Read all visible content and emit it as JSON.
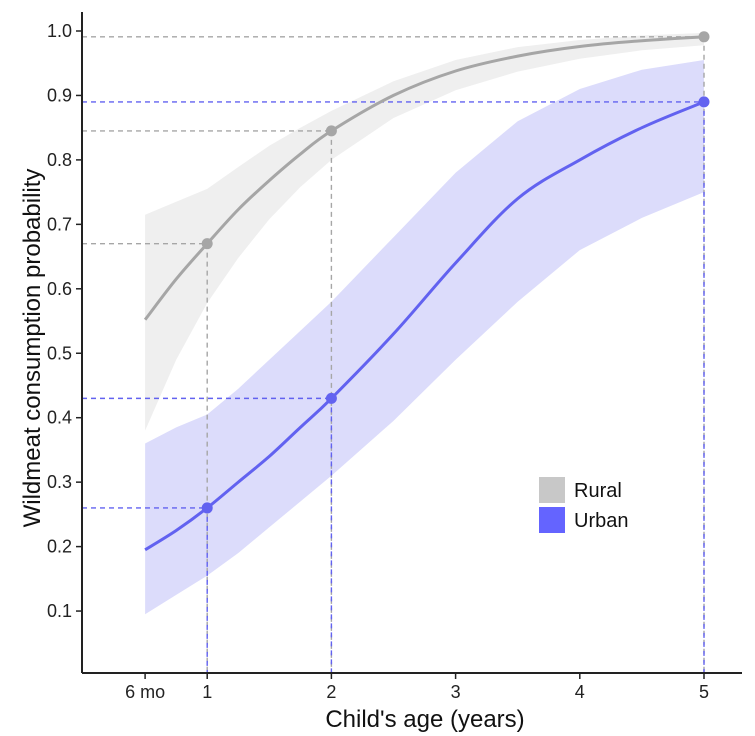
{
  "chart_data": {
    "type": "line",
    "xlabel": "Child's age (years)",
    "ylabel": "Wildmeat consumption probability",
    "xlim": [
      0,
      5.3
    ],
    "ylim": [
      0,
      1.02
    ],
    "x_ticks": [
      {
        "value": 0.5,
        "label": "6 mo"
      },
      {
        "value": 1,
        "label": "1"
      },
      {
        "value": 2,
        "label": "2"
      },
      {
        "value": 3,
        "label": "3"
      },
      {
        "value": 4,
        "label": "4"
      },
      {
        "value": 5,
        "label": "5"
      }
    ],
    "y_ticks": [
      {
        "value": 0.1,
        "label": "0.1"
      },
      {
        "value": 0.2,
        "label": "0.2"
      },
      {
        "value": 0.3,
        "label": "0.3"
      },
      {
        "value": 0.4,
        "label": "0.4"
      },
      {
        "value": 0.5,
        "label": "0.5"
      },
      {
        "value": 0.6,
        "label": "0.6"
      },
      {
        "value": 0.7,
        "label": "0.7"
      },
      {
        "value": 0.8,
        "label": "0.8"
      },
      {
        "value": 0.9,
        "label": "0.9"
      },
      {
        "value": 1.0,
        "label": "1.0"
      }
    ],
    "grid": false,
    "legend_position": "right-middle",
    "series": [
      {
        "name": "Rural",
        "line_color": "#a6a6a6",
        "band_color": "#efefef",
        "legend_color": "#c8c8c8",
        "x": [
          0.5,
          0.75,
          1.0,
          1.25,
          1.5,
          1.75,
          2.0,
          2.5,
          3.0,
          3.5,
          4.0,
          4.5,
          5.0
        ],
        "y": [
          0.552,
          0.615,
          0.67,
          0.723,
          0.768,
          0.809,
          0.845,
          0.9,
          0.938,
          0.961,
          0.976,
          0.985,
          0.991
        ],
        "lower": [
          0.38,
          0.49,
          0.578,
          0.648,
          0.708,
          0.758,
          0.8,
          0.865,
          0.908,
          0.937,
          0.957,
          0.97,
          0.978
        ],
        "upper": [
          0.715,
          0.735,
          0.755,
          0.789,
          0.822,
          0.85,
          0.876,
          0.922,
          0.955,
          0.975,
          0.986,
          0.993,
          0.997
        ],
        "points": [
          {
            "x": 1,
            "y": 0.67
          },
          {
            "x": 2,
            "y": 0.845
          },
          {
            "x": 5,
            "y": 0.991
          }
        ]
      },
      {
        "name": "Urban",
        "line_color": "#6262f0",
        "band_color": "#dcdcfb",
        "legend_color": "#6464ff",
        "x": [
          0.5,
          0.75,
          1.0,
          1.25,
          1.5,
          1.75,
          2.0,
          2.5,
          3.0,
          3.5,
          4.0,
          4.5,
          5.0
        ],
        "y": [
          0.195,
          0.225,
          0.26,
          0.3,
          0.34,
          0.385,
          0.43,
          0.53,
          0.64,
          0.74,
          0.8,
          0.85,
          0.89
        ],
        "lower": [
          0.095,
          0.125,
          0.155,
          0.19,
          0.23,
          0.27,
          0.31,
          0.395,
          0.49,
          0.58,
          0.66,
          0.71,
          0.75
        ],
        "upper": [
          0.36,
          0.385,
          0.405,
          0.445,
          0.49,
          0.535,
          0.58,
          0.68,
          0.78,
          0.86,
          0.91,
          0.94,
          0.955
        ],
        "points": [
          {
            "x": 1,
            "y": 0.26
          },
          {
            "x": 2,
            "y": 0.43
          },
          {
            "x": 5,
            "y": 0.89
          }
        ]
      }
    ]
  }
}
